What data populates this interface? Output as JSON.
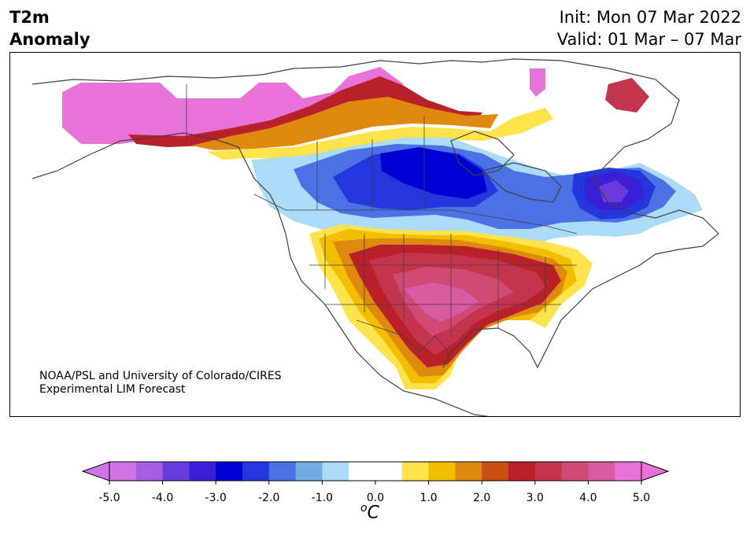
{
  "title": {
    "left_line1": "T2m",
    "left_line2": "Anomaly",
    "init": "Init: Mon 07 Mar 2022",
    "valid": "Valid: 01 Mar – 07 Mar"
  },
  "credit": {
    "line1": "NOAA/PSL and University of Colorado/CIRES",
    "line2": "Experimental LIM Forecast"
  },
  "map": {
    "region": "North America",
    "variable": "2-m temperature anomaly",
    "features": [
      "coastlines",
      "country borders",
      "state/province borders"
    ]
  },
  "colorbar": {
    "ticks": [
      "-5.0",
      "-4.0",
      "-3.0",
      "-2.0",
      "-1.0",
      "0.0",
      "1.0",
      "2.0",
      "3.0",
      "4.0",
      "5.0"
    ],
    "units_base": "C",
    "units_sup": "o",
    "extend": "both",
    "colors": [
      "#d173e6",
      "#a45ce0",
      "#6a3bdc",
      "#3a1fd6",
      "#0000d5",
      "#2437dc",
      "#4a72e4",
      "#74ade6",
      "#aadcf9",
      "#ffffff",
      "#ffffff",
      "#ffe24c",
      "#f2be00",
      "#de8a10",
      "#c85015",
      "#b8202a",
      "#c4344c",
      "#cf4a74",
      "#d85aa0",
      "#e873d8"
    ],
    "below_color": "#d173e6",
    "above_color": "#e873d8"
  }
}
